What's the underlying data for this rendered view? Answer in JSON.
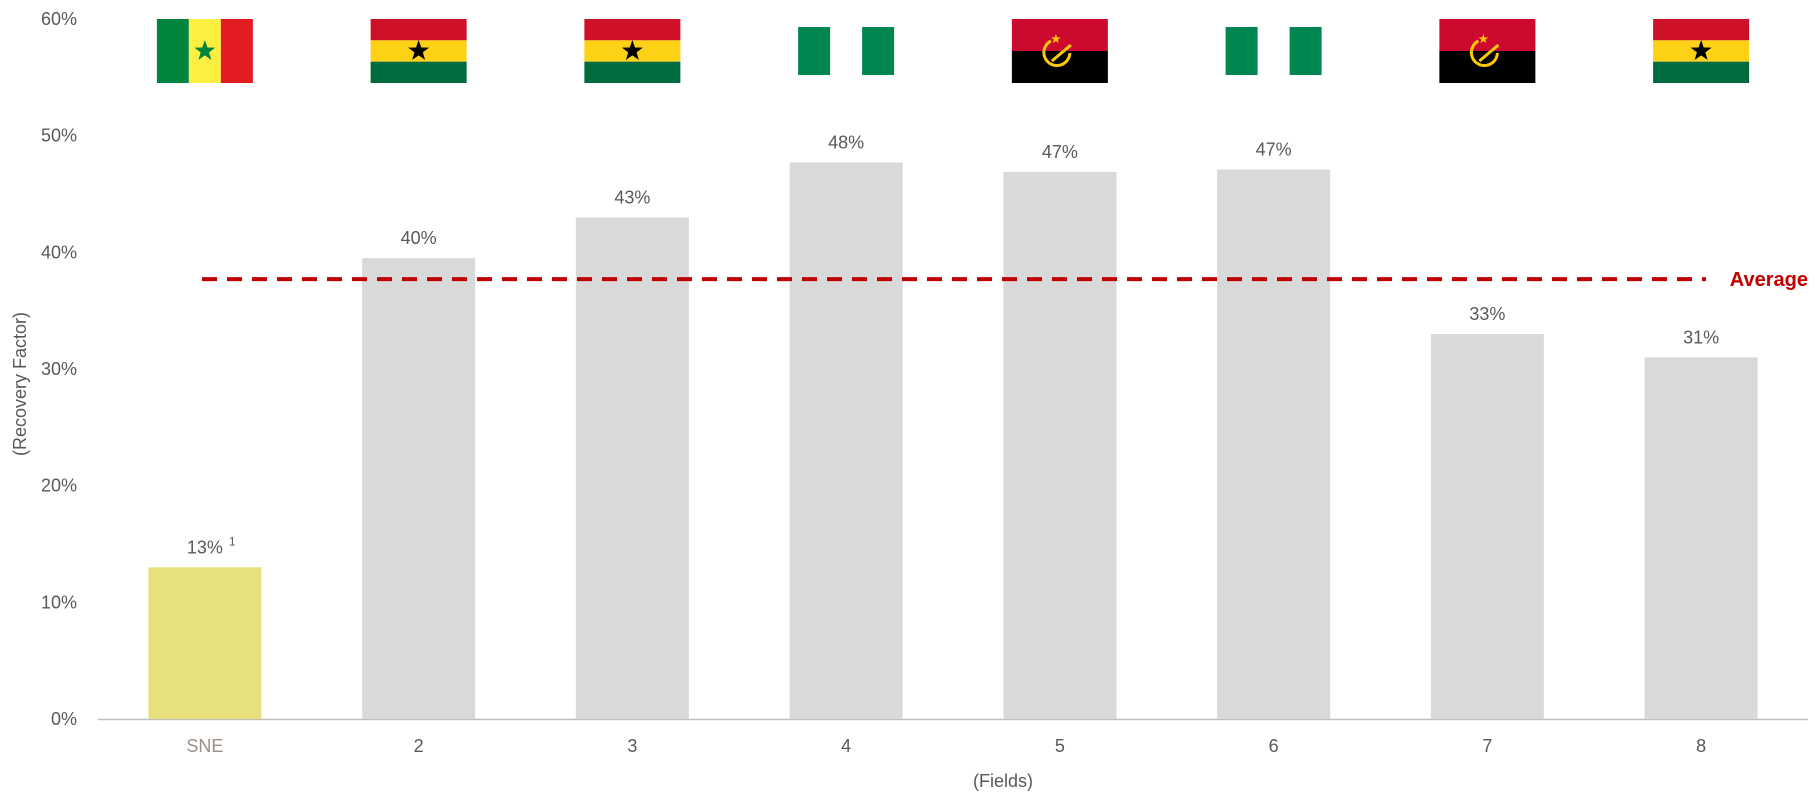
{
  "chart_data": {
    "type": "bar",
    "categories": [
      "SNE",
      "2",
      "3",
      "4",
      "5",
      "6",
      "7",
      "8"
    ],
    "values": [
      0.13,
      0.395,
      0.43,
      0.477,
      0.469,
      0.471,
      0.33,
      0.31
    ],
    "value_labels": [
      "13%",
      "40%",
      "43%",
      "48%",
      "47%",
      "47%",
      "33%",
      "31%"
    ],
    "footnote_markers": [
      "1",
      "",
      "",
      "",
      "",
      "",
      "",
      ""
    ],
    "flags": [
      "senegal",
      "ghana",
      "ghana",
      "nigeria",
      "angola",
      "nigeria",
      "angola",
      "ghana"
    ],
    "average": 0.377,
    "average_label": "Average",
    "xlabel": "(Fields)",
    "ylabel": "(Recovery Factor)",
    "ylim": [
      0,
      0.6
    ],
    "yticks": [
      0,
      0.1,
      0.2,
      0.3,
      0.4,
      0.5,
      0.6
    ],
    "ytick_labels": [
      "0%",
      "10%",
      "20%",
      "30%",
      "40%",
      "50%",
      "60%"
    ],
    "grid": false,
    "legend": "none",
    "colors": {
      "highlight_bar": "#E6E07F",
      "bar": "#D9D9D9",
      "average_line": "#C00000",
      "axis_text": "#595959",
      "highlight_category_text": "#9C8F84",
      "axis_line": "#BFBFBF"
    }
  }
}
